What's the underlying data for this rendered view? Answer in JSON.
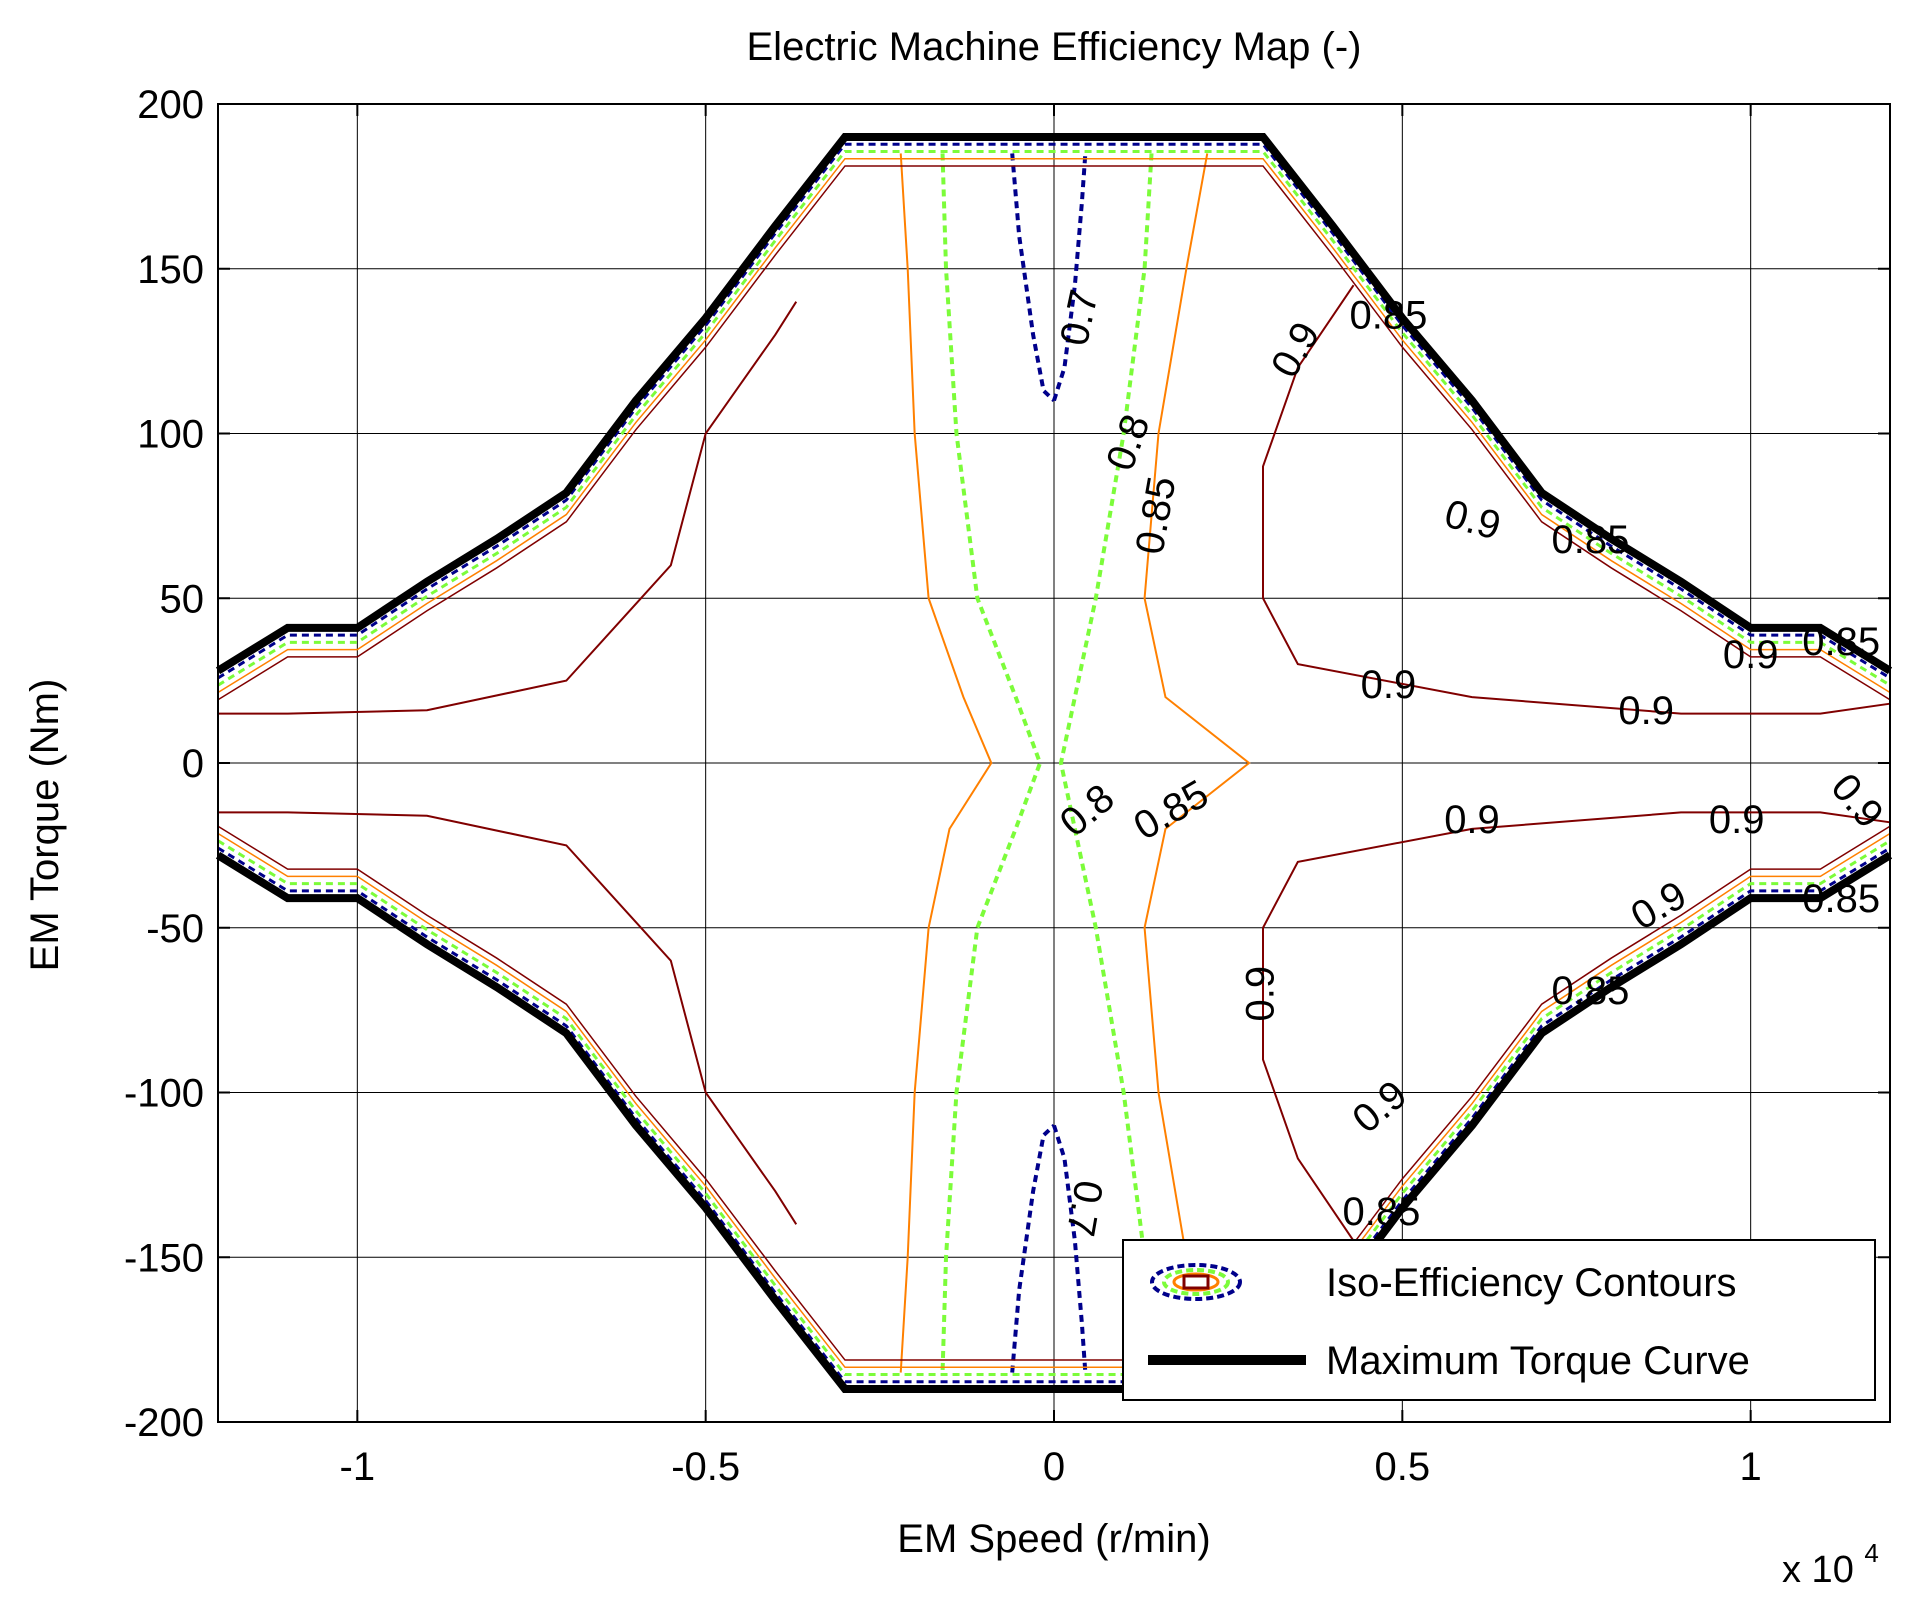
{
  "chart_data": {
    "type": "contour",
    "title": "Electric Machine Efficiency Map (-)",
    "xlabel": "EM Speed (r/min)",
    "ylabel": "EM Torque (Nm)",
    "x_multiplier_label": "x 10",
    "x_multiplier_exponent": "4",
    "xlim": [
      -12000,
      12000
    ],
    "ylim": [
      -200,
      200
    ],
    "grid": true,
    "x_ticks": [
      {
        "value": -10000,
        "label": "-1"
      },
      {
        "value": -5000,
        "label": "-0.5"
      },
      {
        "value": 0,
        "label": "0"
      },
      {
        "value": 5000,
        "label": "0.5"
      },
      {
        "value": 10000,
        "label": "1"
      }
    ],
    "y_ticks": [
      {
        "value": 200,
        "label": "200"
      },
      {
        "value": 150,
        "label": "150"
      },
      {
        "value": 100,
        "label": "100"
      },
      {
        "value": 50,
        "label": "50"
      },
      {
        "value": 0,
        "label": "0"
      },
      {
        "value": -50,
        "label": "-50"
      },
      {
        "value": -100,
        "label": "-100"
      },
      {
        "value": -150,
        "label": "-150"
      },
      {
        "value": -200,
        "label": "-200"
      }
    ],
    "legend": {
      "position": "bottom-right",
      "entries": [
        "Iso-Efficiency Contours",
        "Maximum Torque Curve"
      ]
    },
    "max_torque_curve": {
      "name": "Maximum Torque Curve",
      "color": "#000000",
      "speed": [
        -12000,
        -11000,
        -10000,
        -9000,
        -8000,
        -7000,
        -6000,
        -5000,
        -4000,
        -3000,
        3000,
        4000,
        5000,
        6000,
        7000,
        8000,
        9000,
        10000,
        11000,
        12000
      ],
      "torque": [
        28,
        41,
        41,
        55,
        68,
        82,
        110,
        135,
        163,
        190,
        190,
        163,
        135,
        110,
        82,
        68,
        55,
        41,
        41,
        28
      ]
    },
    "contour_levels": [
      {
        "level": 0.7,
        "color": "#00008b"
      },
      {
        "level": 0.8,
        "color": "#7cfc3a"
      },
      {
        "level": 0.85,
        "color": "#ff8000"
      },
      {
        "level": 0.9,
        "color": "#800000"
      }
    ],
    "contours": [
      {
        "level": 0.7,
        "speed": [
          -600,
          -500,
          -300,
          -150,
          0
        ],
        "torque": [
          185,
          160,
          130,
          113,
          110
        ]
      },
      {
        "level": 0.7,
        "speed": [
          0,
          150,
          300,
          400,
          450
        ],
        "torque": [
          110,
          120,
          145,
          170,
          185
        ]
      },
      {
        "level": 0.7,
        "speed": [
          -600,
          -500,
          -300,
          -150,
          0
        ],
        "torque": [
          -185,
          -160,
          -130,
          -113,
          -110
        ]
      },
      {
        "level": 0.7,
        "speed": [
          0,
          150,
          300,
          400,
          450
        ],
        "torque": [
          -110,
          -120,
          -145,
          -170,
          -185
        ]
      },
      {
        "level": 0.8,
        "speed": [
          -1600,
          -1550,
          -1400,
          -1100,
          -550,
          -200,
          -550,
          -1100,
          -1400,
          -1550,
          -1600
        ],
        "torque": [
          185,
          150,
          100,
          50,
          20,
          0,
          -20,
          -50,
          -100,
          -150,
          -185
        ]
      },
      {
        "level": 0.8,
        "speed": [
          1400,
          1300,
          1000,
          600,
          300,
          100,
          300,
          600,
          1000,
          1300,
          1400
        ],
        "torque": [
          185,
          150,
          100,
          50,
          20,
          0,
          -20,
          -50,
          -100,
          -150,
          -185
        ]
      },
      {
        "level": 0.85,
        "speed": [
          -2200,
          -2100,
          -2000,
          -1800,
          -1300,
          -900,
          -1500,
          -1800,
          -2000,
          -2100,
          -2200
        ],
        "torque": [
          185,
          150,
          100,
          50,
          20,
          0,
          -20,
          -50,
          -100,
          -150,
          -185
        ]
      },
      {
        "level": 0.85,
        "speed": [
          2200,
          1900,
          1500,
          1300,
          1600,
          2800,
          1600,
          1300,
          1500,
          1900,
          2200
        ],
        "torque": [
          185,
          150,
          100,
          50,
          20,
          0,
          -20,
          -50,
          -100,
          -150,
          -185
        ]
      },
      {
        "level": 0.9,
        "speed": [
          -3700,
          -4000,
          -4500,
          -5000,
          -5500,
          -7000,
          -9000,
          -11000,
          -11500,
          -12000
        ],
        "torque": [
          140,
          130,
          115,
          100,
          60,
          25,
          16,
          15,
          15,
          15
        ]
      },
      {
        "level": 0.9,
        "speed": [
          -3700,
          -4000,
          -4500,
          -5000,
          -5500,
          -7000,
          -9000,
          -11000,
          -11500,
          -12000
        ],
        "torque": [
          -140,
          -130,
          -115,
          -100,
          -60,
          -25,
          -16,
          -15,
          -15,
          -15
        ]
      },
      {
        "level": 0.9,
        "speed": [
          4300,
          3500,
          3000,
          3000,
          3500,
          6000,
          9000,
          11000,
          12000
        ],
        "torque": [
          145,
          120,
          90,
          50,
          30,
          20,
          15,
          15,
          18
        ]
      },
      {
        "level": 0.9,
        "speed": [
          4300,
          3500,
          3000,
          3000,
          3500,
          6000,
          9000,
          11000,
          12000
        ],
        "torque": [
          -145,
          -120,
          -90,
          -50,
          -30,
          -20,
          -15,
          -15,
          -18
        ]
      }
    ],
    "contour_labels": [
      {
        "text": "0.7",
        "speed": 400,
        "torque": 135,
        "rotate": -78
      },
      {
        "text": "0.8",
        "speed": 1100,
        "torque": 97,
        "rotate": -70
      },
      {
        "text": "0.85",
        "speed": 1500,
        "torque": 75,
        "rotate": -80
      },
      {
        "text": "0.9",
        "speed": 3500,
        "torque": 125,
        "rotate": -60
      },
      {
        "text": "0.85",
        "speed": 4800,
        "torque": 135,
        "rotate": 0
      },
      {
        "text": "0.9",
        "speed": 6000,
        "torque": 73,
        "rotate": 15
      },
      {
        "text": "0.85",
        "speed": 7700,
        "torque": 67,
        "rotate": 0
      },
      {
        "text": "0.9",
        "speed": 4800,
        "torque": 23,
        "rotate": 0
      },
      {
        "text": "0.9",
        "speed": 8500,
        "torque": 15,
        "rotate": 0
      },
      {
        "text": "0.9",
        "speed": 10000,
        "torque": 32,
        "rotate": 0
      },
      {
        "text": "0.85",
        "speed": 11300,
        "torque": 36,
        "rotate": 0
      },
      {
        "text": "0.8",
        "speed": 500,
        "torque": -15,
        "rotate": -40
      },
      {
        "text": "0.85",
        "speed": 1700,
        "torque": -15,
        "rotate": -30
      },
      {
        "text": "0.9",
        "speed": 6000,
        "torque": -18,
        "rotate": 0
      },
      {
        "text": "0.9",
        "speed": 9800,
        "torque": -18,
        "rotate": 0
      },
      {
        "text": "0.9",
        "speed": 11500,
        "torque": -12,
        "rotate": 50
      },
      {
        "text": "0.9",
        "speed": 8700,
        "torque": -44,
        "rotate": -30
      },
      {
        "text": "0.85",
        "speed": 11300,
        "torque": -42,
        "rotate": 0
      },
      {
        "text": "0.9",
        "speed": 3000,
        "torque": -70,
        "rotate": -90
      },
      {
        "text": "0.85",
        "speed": 7700,
        "torque": -70,
        "rotate": 0
      },
      {
        "text": "0.9",
        "speed": 4700,
        "torque": -105,
        "rotate": -40
      },
      {
        "text": "0.7",
        "speed": 400,
        "torque": -135,
        "rotate": 100
      },
      {
        "text": "0.85",
        "speed": 4700,
        "torque": -137,
        "rotate": 0
      }
    ]
  }
}
